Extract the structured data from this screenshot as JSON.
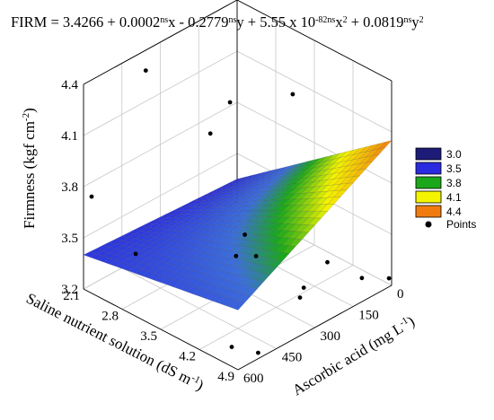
{
  "chart_data": {
    "type": "surface3d",
    "equation": {
      "lead": "FIRM = 3.4266 + 0.0002",
      "sup1": "ns",
      "t2": "x - 0.2779",
      "sup2": "ns",
      "t3": "y + 5.55 x 10",
      "sup3": "-82ns",
      "t4": "x",
      "sup4": "2",
      "t5": " + 0.0819",
      "sup5": "ns",
      "t6": "y",
      "sup6": "2"
    },
    "zlabel": {
      "pre": "Firmness (kgf cm",
      "sup": "-2",
      "post": ")"
    },
    "xlabel": "Saline nutrient solution (dS m",
    "xlabel_sup": "-1",
    "xlabel_post": ")",
    "ylabel": "Ascorbic acid (mg L",
    "ylabel_sup": "-1",
    "ylabel_post": ")",
    "x_ticks": [
      "2.1",
      "2.8",
      "3.5",
      "4.2",
      "4.9"
    ],
    "x_tick_values": [
      2.1,
      2.8,
      3.5,
      4.2,
      4.9
    ],
    "y_ticks": [
      "0",
      "150",
      "300",
      "450",
      "600"
    ],
    "y_tick_values": [
      0,
      150,
      300,
      450,
      600
    ],
    "z_ticks": [
      "3.2",
      "3.5",
      "3.8",
      "4.1",
      "4.4"
    ],
    "z_tick_values": [
      3.2,
      3.5,
      3.8,
      4.1,
      4.4
    ],
    "xlim": [
      2.1,
      4.9
    ],
    "ylim": [
      0,
      600
    ],
    "zlim": [
      3.2,
      4.4
    ],
    "legend": {
      "entries": [
        {
          "label": "3.0",
          "color": "#1c1c78"
        },
        {
          "label": "3.5",
          "color": "#2a2ae0"
        },
        {
          "label": "3.8",
          "color": "#1aa81a"
        },
        {
          "label": "4.1",
          "color": "#f4f400"
        },
        {
          "label": "4.4",
          "color": "#f07c10"
        }
      ],
      "points_label": "Points",
      "placement": "right"
    },
    "points": [
      {
        "x": 2.3,
        "y": 400,
        "z": 4.35
      },
      {
        "x": 2.9,
        "y": 200,
        "z": 4.1
      },
      {
        "x": 3.2,
        "y": 20,
        "z": 4.05
      },
      {
        "x": 3.1,
        "y": 320,
        "z": 4.05
      },
      {
        "x": 2.2,
        "y": 590,
        "z": 3.75
      },
      {
        "x": 4.4,
        "y": 500,
        "z": 3.7
      },
      {
        "x": 3.0,
        "y": 590,
        "z": 3.55
      },
      {
        "x": 4.2,
        "y": 100,
        "z": 3.3
      },
      {
        "x": 4.3,
        "y": 400,
        "z": 3.6
      },
      {
        "x": 4.7,
        "y": 300,
        "z": 3.4
      },
      {
        "x": 4.9,
        "y": 10,
        "z": 3.25
      },
      {
        "x": 4.6,
        "y": 560,
        "z": 3.25
      },
      {
        "x": 4.4,
        "y": 250,
        "z": 3.25
      },
      {
        "x": 4.5,
        "y": 30,
        "z": 3.2
      },
      {
        "x": 3.4,
        "y": 250,
        "z": 3.45
      },
      {
        "x": 4.8,
        "y": 500,
        "z": 3.2
      }
    ],
    "surface": {
      "corner_front_left": 3.4,
      "corner_front_right": 3.55,
      "corner_back_left": 3.35,
      "corner_back_right": 4.05,
      "color_low": "#2a2ae0",
      "color_mid": "#1aa81a",
      "color_high": "#f07c10"
    }
  }
}
